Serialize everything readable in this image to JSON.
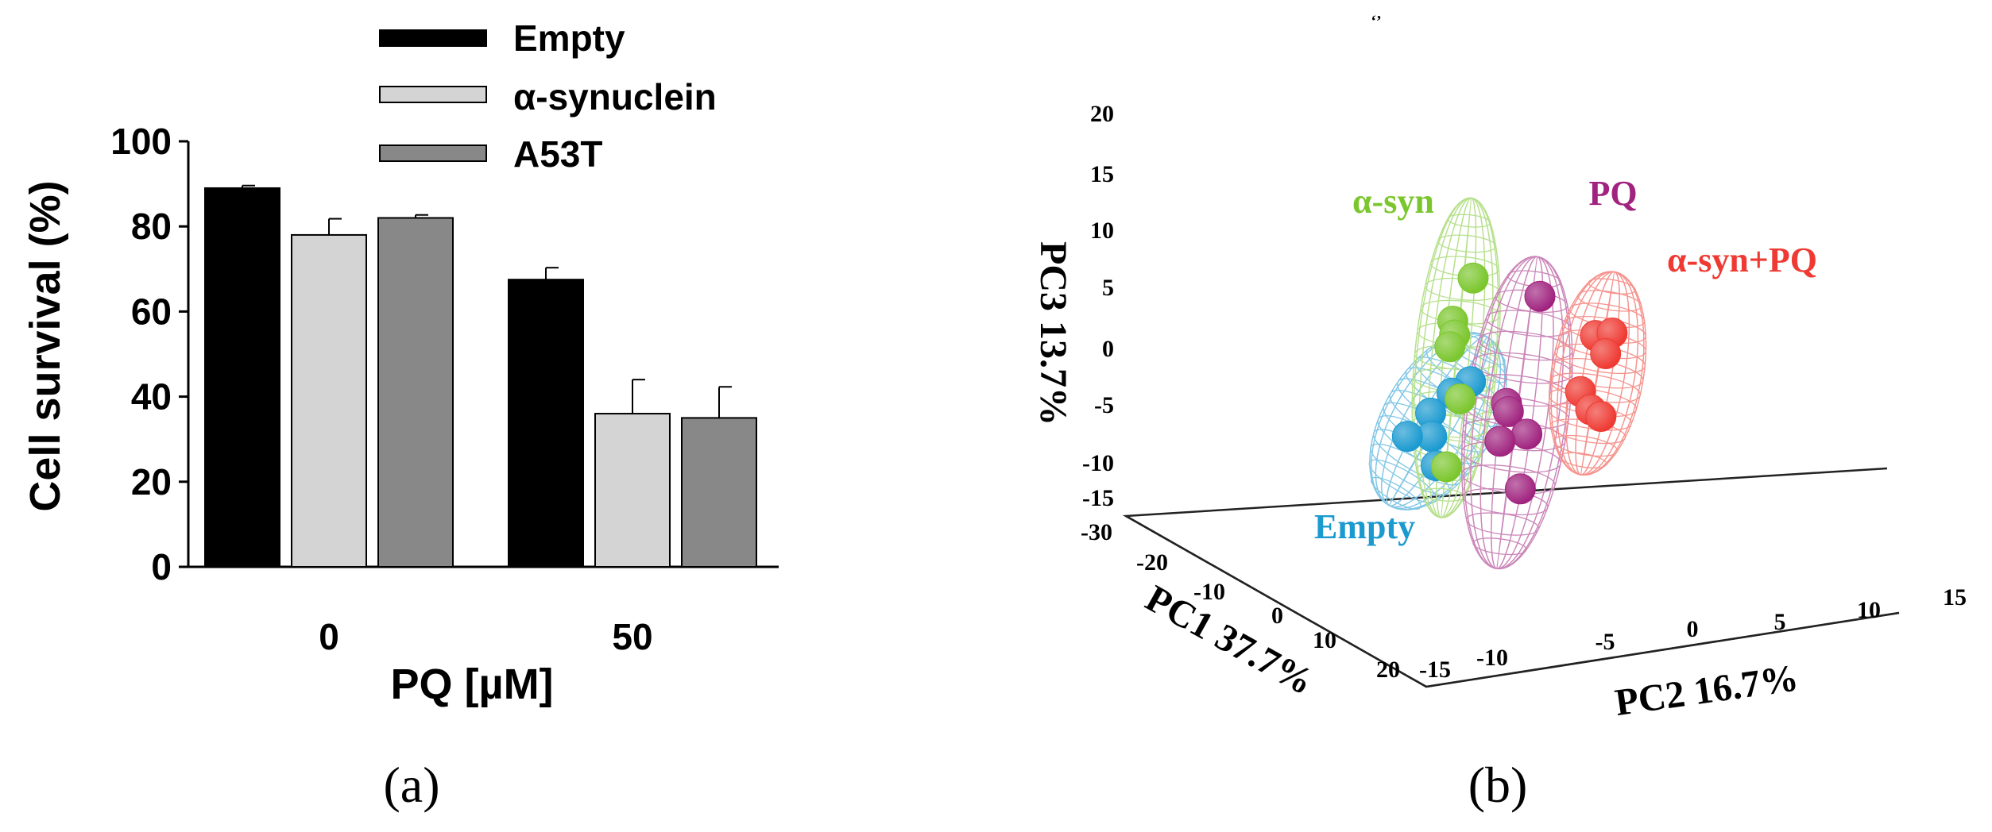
{
  "chart_data": [
    {
      "panel": "(a)",
      "type": "bar",
      "xlabel": "PQ [µM]",
      "ylabel": "Cell survival (%)",
      "ylim": [
        0,
        100
      ],
      "yticks": [
        "0",
        "20",
        "40",
        "60",
        "80",
        "100"
      ],
      "categories": [
        "0",
        "50"
      ],
      "legend_position": "top-right",
      "series": [
        {
          "name": "Empty",
          "color": "#000000",
          "values": [
            89,
            67.5
          ],
          "errors": [
            0.6,
            2.8
          ]
        },
        {
          "name": "α-synuclein",
          "color": "#d4d4d4",
          "values": [
            78,
            36
          ],
          "errors": [
            3.8,
            8
          ]
        },
        {
          "name": "A53T",
          "color": "#888888",
          "values": [
            82,
            35
          ],
          "errors": [
            0.7,
            7.3
          ]
        }
      ]
    },
    {
      "panel": "(b)",
      "type": "scatter",
      "subtype": "3d-pca",
      "axes": {
        "pc1": {
          "label": "PC1 37.7%",
          "ticks": [
            "-30",
            "-20",
            "-10",
            "0",
            "10",
            "20"
          ],
          "range": [
            -30,
            20
          ]
        },
        "pc2": {
          "label": "PC2 16.7%",
          "ticks": [
            "-15",
            "-10",
            "-5",
            "0",
            "5",
            "10",
            "15"
          ],
          "range": [
            -15,
            15
          ]
        },
        "pc3": {
          "label": "PC3 13.7%",
          "ticks": [
            "-15",
            "-10",
            "-5",
            "0",
            "5",
            "10",
            "15",
            "20"
          ],
          "range": [
            -15,
            20
          ]
        }
      },
      "groups": [
        {
          "name": "Empty",
          "color": "#1b9ad0",
          "points": [
            [
              -6,
              -3.5,
              -4
            ],
            [
              -7,
              -5,
              -5
            ],
            [
              -5,
              -5.5,
              -6
            ],
            [
              -9,
              -7,
              -9
            ],
            [
              -4,
              -6.5,
              -7.5
            ],
            [
              -2,
              -4,
              -10
            ]
          ]
        },
        {
          "name": "α-syn",
          "color": "#7bc62d",
          "points": [
            [
              0,
              -1,
              6.5
            ],
            [
              -2,
              -3,
              2.5
            ],
            [
              -1,
              -2.5,
              1.5
            ],
            [
              1,
              -2,
              1
            ],
            [
              2,
              -1,
              -3.5
            ],
            [
              -1,
              -3,
              -10
            ]
          ]
        },
        {
          "name": "PQ",
          "color": "#a0247f",
          "points": [
            [
              0,
              3,
              4
            ],
            [
              0,
              1,
              -5
            ],
            [
              1,
              1.5,
              -5.5
            ],
            [
              2,
              3,
              -7.5
            ],
            [
              1,
              1,
              -8
            ],
            [
              3,
              3,
              -12
            ]
          ]
        },
        {
          "name": "α-syn+PQ",
          "color": "#ee3a32",
          "points": [
            [
              3,
              7.5,
              0.5
            ],
            [
              3,
              8.5,
              0.5
            ],
            [
              4,
              8.5,
              -1
            ],
            [
              4,
              7,
              -4
            ],
            [
              5,
              8,
              -5.5
            ],
            [
              6,
              9,
              -6
            ]
          ]
        }
      ]
    }
  ],
  "panel_labels": {
    "a": "(a)",
    "b": "(b)"
  },
  "stray_mark": "‘’"
}
